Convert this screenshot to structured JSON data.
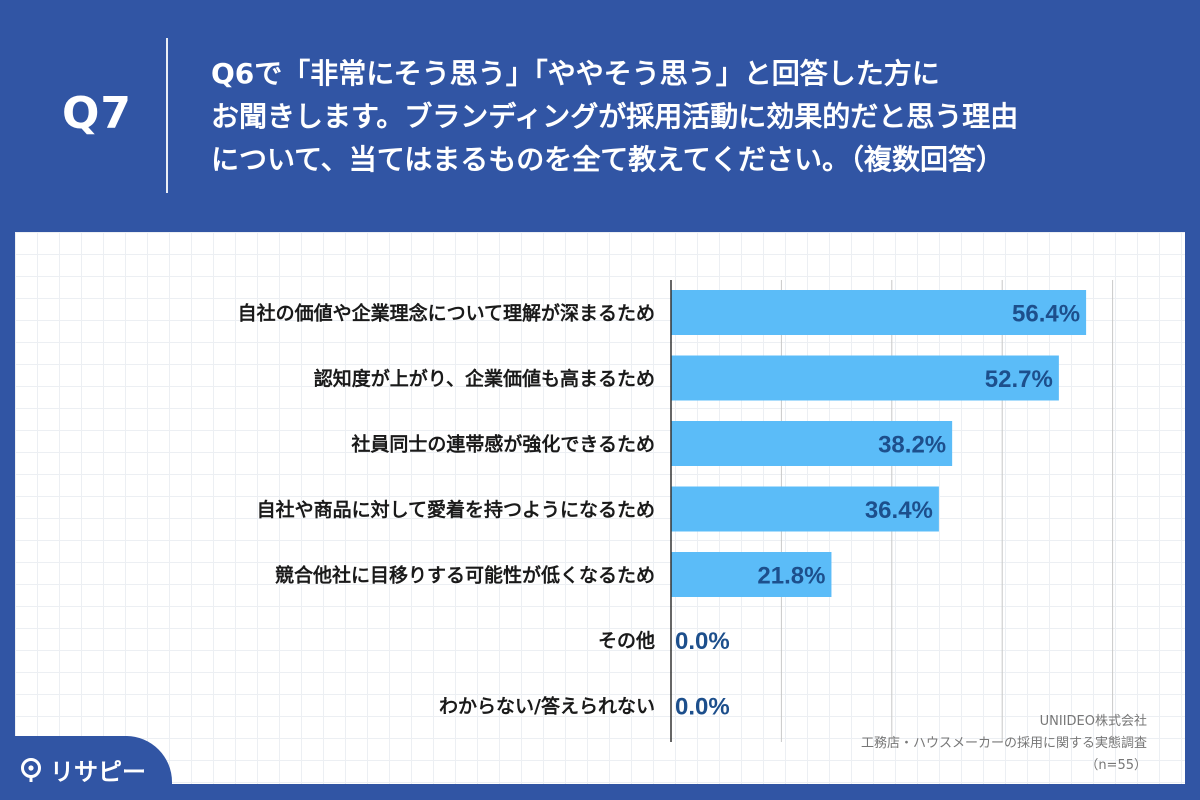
{
  "header": {
    "q_label": "Q7",
    "question_lines": [
      "Q6で「非常にそう思う」「ややそう思う」と回答した方に",
      "お聞きします。ブランディングが採用活動に効果的だと思う理由",
      "について、当てはまるものを全て教えてください。（複数回答）"
    ]
  },
  "chart_data": {
    "type": "bar",
    "orientation": "horizontal",
    "categories": [
      "自社の価値や企業理念について理解が深まるため",
      "認知度が上がり、企業価値も高まるため",
      "社員同士の連帯感が強化できるため",
      "自社や商品に対して愛着を持つようになるため",
      "競合他社に目移りする可能性が低くなるため",
      "その他",
      "わからない/答えられない"
    ],
    "values": [
      56.4,
      52.7,
      38.2,
      36.4,
      21.8,
      0.0,
      0.0
    ],
    "value_labels": [
      "56.4%",
      "52.7%",
      "38.2%",
      "36.4%",
      "21.8%",
      "0.0%",
      "0.0%"
    ],
    "xlim": [
      0,
      60
    ],
    "grid": true,
    "colors": {
      "bar": "#5bbcf8",
      "value_text": "#1d4f8c"
    }
  },
  "source": {
    "company": "UNIIDEO株式会社",
    "survey": "工務店・ハウスメーカーの採用に関する実態調査",
    "sample": "（n=55）"
  },
  "logo": {
    "text": "リサピー"
  }
}
